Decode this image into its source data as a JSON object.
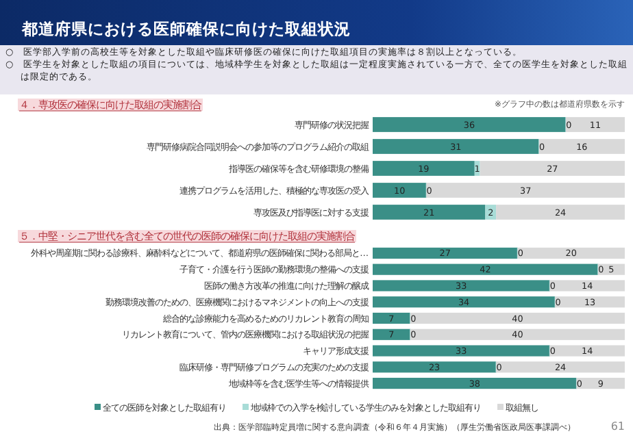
{
  "chart_data": [
    {
      "type": "other",
      "title": "都道府県における医師確保に向けた取組状況",
      "annotations": [
        "○　医学部入学前の高校生等を対象とした取組や臨床研修医の確保に向けた取組項目の実施率は８割以上となっている。",
        "○　医学生を対象とした取組の項目については、地域枠学生を対象とした取組は一定程度実施されている一方で、全ての医学生を対象とした取組は限定的である。",
        "出典：医学部臨時定員増に関する意向調査（令和６年４月実施）（厚生労働省医政局医事課調べ）",
        "61"
      ]
    },
    {
      "type": "bar",
      "orientation": "horizontal",
      "stacked": true,
      "title": "４．専攻医の確保に向けた取組の実施割合",
      "annotations": [
        "※グラフ中の数は都道府県数を示す",
        {
          "text": "0",
          "x": 36,
          "y": "専門研修の状況把握"
        },
        {
          "text": "0",
          "x": 31,
          "y": "専門研修病院合同説明会への参加等のプログラム紹介の取組"
        },
        {
          "text": "0",
          "x": 10,
          "y": "連携プログラムを活用した、積極的な専攻医の受入"
        }
      ],
      "categories": [
        "専門研修の状況把握",
        "専門研修病院合同説明会への参加等のプログラム紹介の取組",
        "指導医の確保等を含む研修環境の整備",
        "連携プログラムを活用した、積極的な専攻医の受入",
        "専攻医及び指導医に対する支援"
      ],
      "series": [
        {
          "color": "#3a8f87",
          "values": [
            36,
            31,
            19,
            10,
            21
          ],
          "value_labels": [
            "36",
            "31",
            "19",
            "10",
            "21"
          ]
        },
        {
          "color": "#a8dcd7",
          "values": [
            0,
            0,
            1,
            0,
            2
          ],
          "value_labels": [
            null,
            null,
            "1",
            null,
            "2"
          ]
        },
        {
          "color": "#d9d9d9",
          "values": [
            11,
            16,
            27,
            37,
            24
          ],
          "value_labels": [
            "11",
            "16",
            "27",
            "37",
            "24"
          ]
        }
      ]
    },
    {
      "type": "bar",
      "orientation": "horizontal",
      "stacked": true,
      "legend": "bottom",
      "title": "５．中堅・シニア世代を含む全ての世代の医師の確保に向けた取組の実施割合",
      "annotations": [
        {
          "text": "0",
          "x": 27,
          "y": "外科や周産期に関わる診療科、麻酔科などについて、都道府県の医師確保に関わる部局と…"
        },
        {
          "text": "0",
          "x": 42,
          "y": "子育て・介護を行う医師の勤務環境の整備への支援"
        },
        {
          "text": "0",
          "x": 33,
          "y": "医師の働き方改革の推進に向けた理解の醸成"
        },
        {
          "text": "0",
          "x": 34,
          "y": "勤務環境改善のための、医療機関におけるマネジメントの向上への支援"
        },
        {
          "text": "0",
          "x": 7,
          "y": "総合的な診療能力を高めるためのリカレント教育の周知"
        },
        {
          "text": "0",
          "x": 7,
          "y": "リカレント教育について、管内の医療機関における取組状況の把握"
        },
        {
          "text": "0",
          "x": 33,
          "y": "キャリア形成支援"
        },
        {
          "text": "0",
          "x": 23,
          "y": "臨床研修・専門研修プログラムの充実のための支援"
        },
        {
          "text": "0",
          "x": 38,
          "y": "地域枠等を含む医学生等への情報提供"
        }
      ],
      "categories": [
        "外科や周産期に関わる診療科、麻酔科などについて、都道府県の医師確保に関わる部局と…",
        "子育て・介護を行う医師の勤務環境の整備への支援",
        "医師の働き方改革の推進に向けた理解の醸成",
        "勤務環境改善のための、医療機関におけるマネジメントの向上への支援",
        "総合的な診療能力を高めるためのリカレント教育の周知",
        "リカレント教育について、管内の医療機関における取組状況の把握",
        "キャリア形成支援",
        "臨床研修・専門研修プログラムの充実のための支援",
        "地域枠等を含む医学生等への情報提供"
      ],
      "series": [
        {
          "name": "全ての医師を対象とした取組有り",
          "color": "#3a8f87",
          "values": [
            27,
            42,
            33,
            34,
            7,
            7,
            33,
            23,
            38
          ],
          "value_labels": [
            "27",
            "42",
            "33",
            "34",
            "7",
            "7",
            "33",
            "23",
            "38"
          ]
        },
        {
          "name": "地域枠での入学を検討している学生のみを対象とした取組有り",
          "color": "#a8dcd7",
          "values": [
            0,
            0,
            0,
            0,
            0,
            0,
            0,
            0,
            0
          ]
        },
        {
          "name": "取組無し",
          "color": "#d9d9d9",
          "values": [
            20,
            5,
            14,
            13,
            40,
            40,
            14,
            24,
            9
          ],
          "value_labels": [
            "20",
            "5",
            "14",
            "13",
            "40",
            "40",
            "14",
            "24",
            "9"
          ]
        }
      ]
    }
  ]
}
